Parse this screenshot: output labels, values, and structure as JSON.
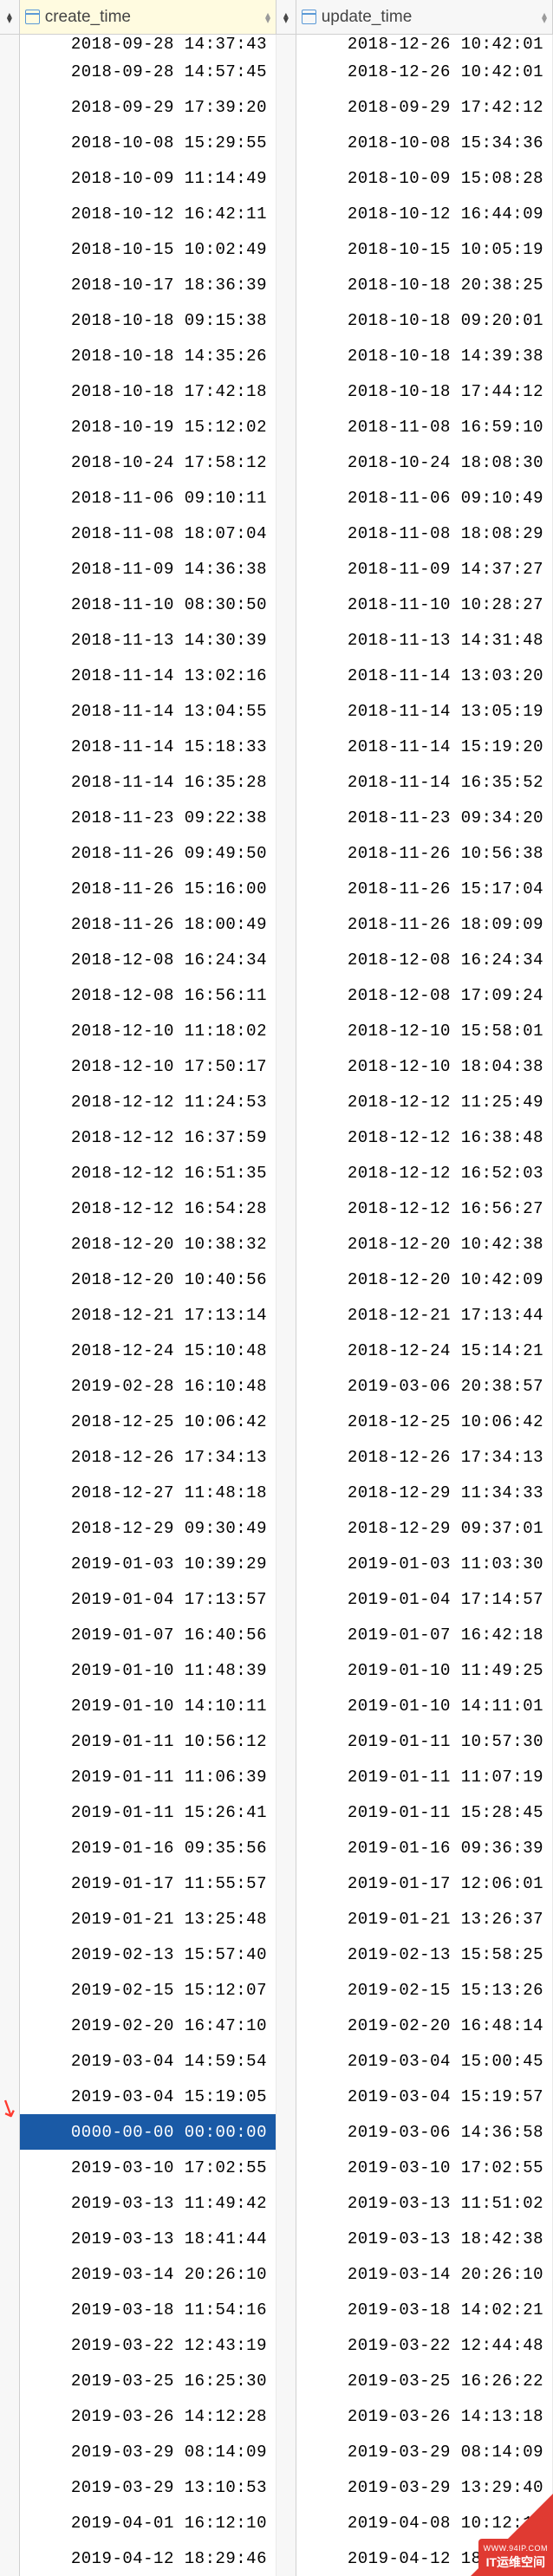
{
  "columns": {
    "gutter1_name": "row-gutter-left",
    "create": {
      "label": "create_time",
      "icon": "calendar-icon",
      "highlighted_bg": "#fffbe0"
    },
    "gutter2_name": "row-gutter-mid",
    "update": {
      "label": "update_time",
      "icon": "calendar-icon"
    }
  },
  "cut_row": {
    "create": "2018-09-28 14:37:43",
    "update": "2018-12-26 10:42:01"
  },
  "rows": [
    {
      "create": "2018-09-28 14:57:45",
      "update": "2018-12-26 10:42:01"
    },
    {
      "create": "2018-09-29 17:39:20",
      "update": "2018-09-29 17:42:12"
    },
    {
      "create": "2018-10-08 15:29:55",
      "update": "2018-10-08 15:34:36"
    },
    {
      "create": "2018-10-09 11:14:49",
      "update": "2018-10-09 15:08:28"
    },
    {
      "create": "2018-10-12 16:42:11",
      "update": "2018-10-12 16:44:09"
    },
    {
      "create": "2018-10-15 10:02:49",
      "update": "2018-10-15 10:05:19"
    },
    {
      "create": "2018-10-17 18:36:39",
      "update": "2018-10-18 20:38:25"
    },
    {
      "create": "2018-10-18 09:15:38",
      "update": "2018-10-18 09:20:01"
    },
    {
      "create": "2018-10-18 14:35:26",
      "update": "2018-10-18 14:39:38"
    },
    {
      "create": "2018-10-18 17:42:18",
      "update": "2018-10-18 17:44:12"
    },
    {
      "create": "2018-10-19 15:12:02",
      "update": "2018-11-08 16:59:10"
    },
    {
      "create": "2018-10-24 17:58:12",
      "update": "2018-10-24 18:08:30"
    },
    {
      "create": "2018-11-06 09:10:11",
      "update": "2018-11-06 09:10:49"
    },
    {
      "create": "2018-11-08 18:07:04",
      "update": "2018-11-08 18:08:29"
    },
    {
      "create": "2018-11-09 14:36:38",
      "update": "2018-11-09 14:37:27"
    },
    {
      "create": "2018-11-10 08:30:50",
      "update": "2018-11-10 10:28:27"
    },
    {
      "create": "2018-11-13 14:30:39",
      "update": "2018-11-13 14:31:48"
    },
    {
      "create": "2018-11-14 13:02:16",
      "update": "2018-11-14 13:03:20"
    },
    {
      "create": "2018-11-14 13:04:55",
      "update": "2018-11-14 13:05:19"
    },
    {
      "create": "2018-11-14 15:18:33",
      "update": "2018-11-14 15:19:20"
    },
    {
      "create": "2018-11-14 16:35:28",
      "update": "2018-11-14 16:35:52"
    },
    {
      "create": "2018-11-23 09:22:38",
      "update": "2018-11-23 09:34:20"
    },
    {
      "create": "2018-11-26 09:49:50",
      "update": "2018-11-26 10:56:38"
    },
    {
      "create": "2018-11-26 15:16:00",
      "update": "2018-11-26 15:17:04"
    },
    {
      "create": "2018-11-26 18:00:49",
      "update": "2018-11-26 18:09:09"
    },
    {
      "create": "2018-12-08 16:24:34",
      "update": "2018-12-08 16:24:34"
    },
    {
      "create": "2018-12-08 16:56:11",
      "update": "2018-12-08 17:09:24"
    },
    {
      "create": "2018-12-10 11:18:02",
      "update": "2018-12-10 15:58:01"
    },
    {
      "create": "2018-12-10 17:50:17",
      "update": "2018-12-10 18:04:38"
    },
    {
      "create": "2018-12-12 11:24:53",
      "update": "2018-12-12 11:25:49"
    },
    {
      "create": "2018-12-12 16:37:59",
      "update": "2018-12-12 16:38:48"
    },
    {
      "create": "2018-12-12 16:51:35",
      "update": "2018-12-12 16:52:03"
    },
    {
      "create": "2018-12-12 16:54:28",
      "update": "2018-12-12 16:56:27"
    },
    {
      "create": "2018-12-20 10:38:32",
      "update": "2018-12-20 10:42:38"
    },
    {
      "create": "2018-12-20 10:40:56",
      "update": "2018-12-20 10:42:09"
    },
    {
      "create": "2018-12-21 17:13:14",
      "update": "2018-12-21 17:13:44"
    },
    {
      "create": "2018-12-24 15:10:48",
      "update": "2018-12-24 15:14:21"
    },
    {
      "create": "2019-02-28 16:10:48",
      "update": "2019-03-06 20:38:57"
    },
    {
      "create": "2018-12-25 10:06:42",
      "update": "2018-12-25 10:06:42"
    },
    {
      "create": "2018-12-26 17:34:13",
      "update": "2018-12-26 17:34:13"
    },
    {
      "create": "2018-12-27 11:48:18",
      "update": "2018-12-29 11:34:33"
    },
    {
      "create": "2018-12-29 09:30:49",
      "update": "2018-12-29 09:37:01"
    },
    {
      "create": "2019-01-03 10:39:29",
      "update": "2019-01-03 11:03:30"
    },
    {
      "create": "2019-01-04 17:13:57",
      "update": "2019-01-04 17:14:57"
    },
    {
      "create": "2019-01-07 16:40:56",
      "update": "2019-01-07 16:42:18"
    },
    {
      "create": "2019-01-10 11:48:39",
      "update": "2019-01-10 11:49:25"
    },
    {
      "create": "2019-01-10 14:10:11",
      "update": "2019-01-10 14:11:01"
    },
    {
      "create": "2019-01-11 10:56:12",
      "update": "2019-01-11 10:57:30"
    },
    {
      "create": "2019-01-11 11:06:39",
      "update": "2019-01-11 11:07:19"
    },
    {
      "create": "2019-01-11 15:26:41",
      "update": "2019-01-11 15:28:45"
    },
    {
      "create": "2019-01-16 09:35:56",
      "update": "2019-01-16 09:36:39"
    },
    {
      "create": "2019-01-17 11:55:57",
      "update": "2019-01-17 12:06:01"
    },
    {
      "create": "2019-01-21 13:25:48",
      "update": "2019-01-21 13:26:37"
    },
    {
      "create": "2019-02-13 15:57:40",
      "update": "2019-02-13 15:58:25"
    },
    {
      "create": "2019-02-15 15:12:07",
      "update": "2019-02-15 15:13:26"
    },
    {
      "create": "2019-02-20 16:47:10",
      "update": "2019-02-20 16:48:14"
    },
    {
      "create": "2019-03-04 14:59:54",
      "update": "2019-03-04 15:00:45"
    },
    {
      "create": "2019-03-04 15:19:05",
      "update": "2019-03-04 15:19:57"
    },
    {
      "create": "0000-00-00 00:00:00",
      "update": "2019-03-06 14:36:58",
      "selected_create": true,
      "arrow": true
    },
    {
      "create": "2019-03-10 17:02:55",
      "update": "2019-03-10 17:02:55"
    },
    {
      "create": "2019-03-13 11:49:42",
      "update": "2019-03-13 11:51:02"
    },
    {
      "create": "2019-03-13 18:41:44",
      "update": "2019-03-13 18:42:38"
    },
    {
      "create": "2019-03-14 20:26:10",
      "update": "2019-03-14 20:26:10"
    },
    {
      "create": "2019-03-18 11:54:16",
      "update": "2019-03-18 14:02:21"
    },
    {
      "create": "2019-03-22 12:43:19",
      "update": "2019-03-22 12:44:48"
    },
    {
      "create": "2019-03-25 16:25:30",
      "update": "2019-03-25 16:26:22"
    },
    {
      "create": "2019-03-26 14:12:28",
      "update": "2019-03-26 14:13:18"
    },
    {
      "create": "2019-03-29 08:14:09",
      "update": "2019-03-29 08:14:09"
    },
    {
      "create": "2019-03-29 13:10:53",
      "update": "2019-03-29 13:29:40"
    },
    {
      "create": "2019-04-01 16:12:10",
      "update": "2019-04-08 10:12:10"
    },
    {
      "create": "2019-04-12 18:29:46",
      "update": "2019-04-12 18:29:46"
    }
  ],
  "selection": {
    "bg": "#1a5aa6",
    "fg": "#ffffff"
  },
  "annotation": {
    "arrow_color": "#ff3b30",
    "arrow_glyph": "↘"
  },
  "watermark": {
    "text": "IT运维空间",
    "url": "WWW.94IP.COM",
    "bg": "#e03a32",
    "fg": "#ffffff"
  }
}
